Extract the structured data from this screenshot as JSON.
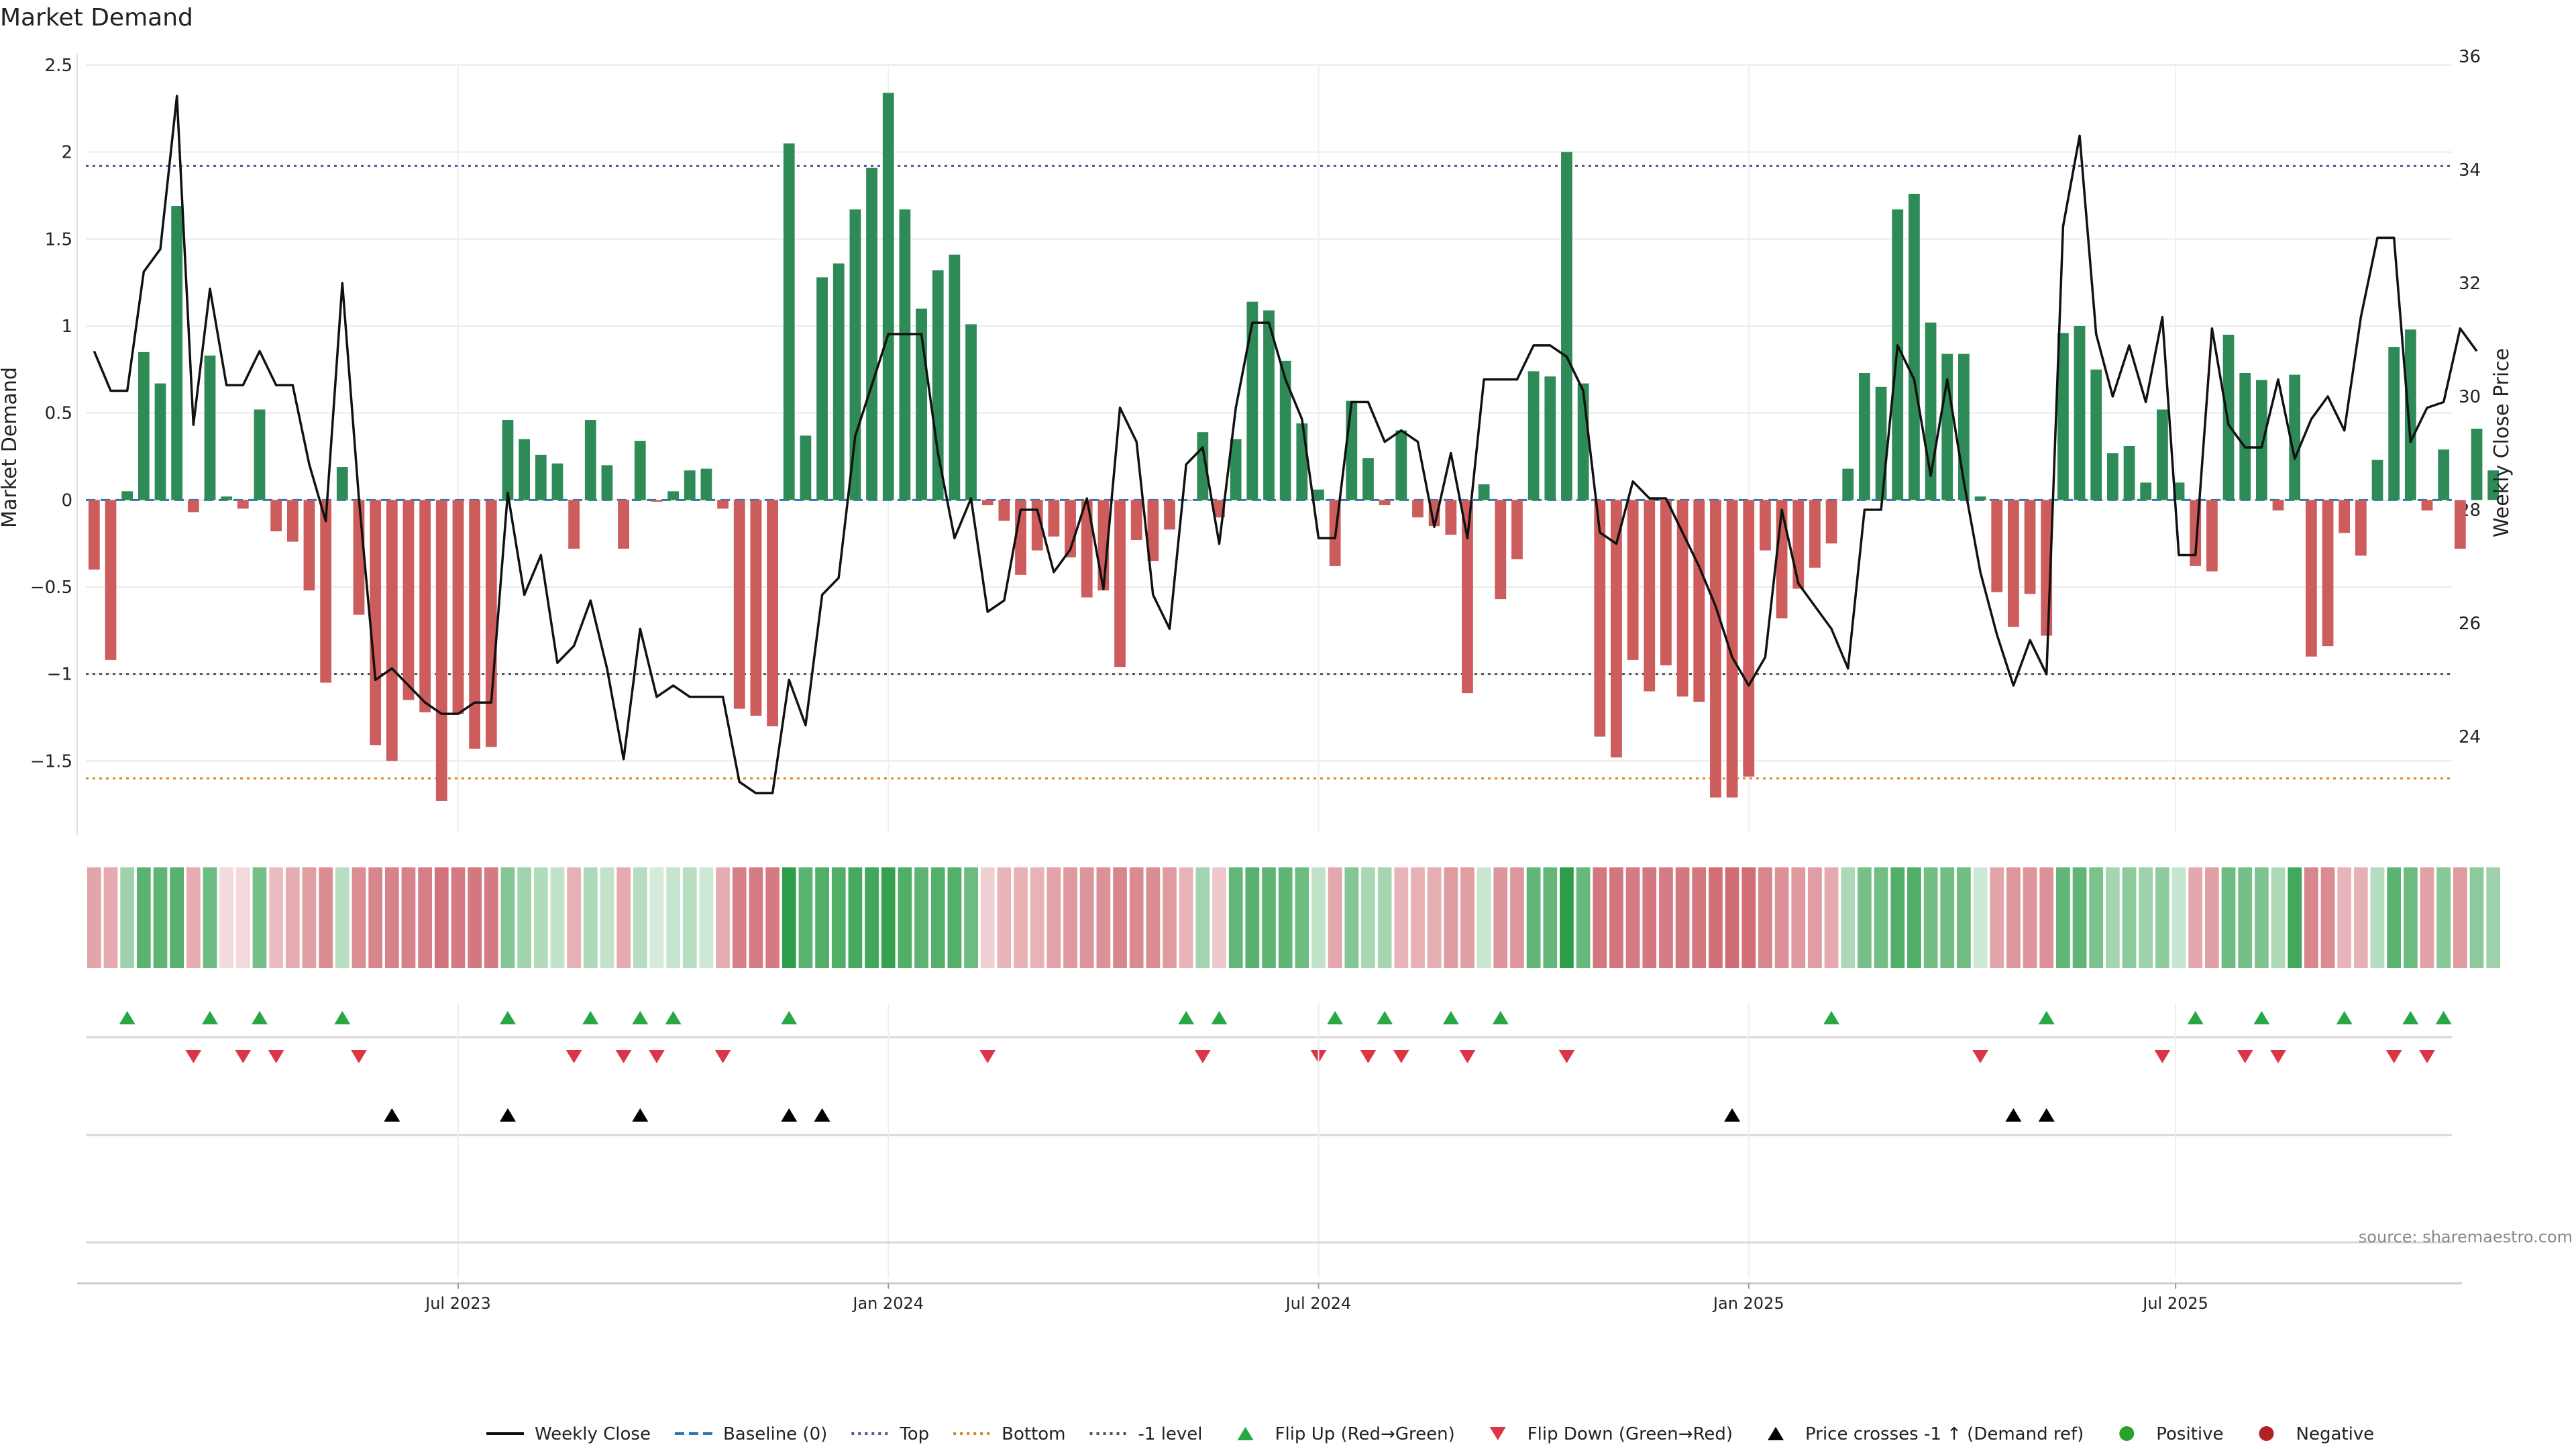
{
  "chart_data": {
    "type": "bar",
    "title": "Market Demand",
    "ylabel": "Market Demand",
    "y2label": "Weekly Close Price",
    "source": "source: sharemaestro.com",
    "ylim": [
      -1.95,
      2.5
    ],
    "y2lim": [
      22.2,
      36
    ],
    "yticks": [
      2.5,
      2,
      1.5,
      1,
      0.5,
      0,
      -0.5,
      -1,
      -1.5
    ],
    "ytick_labels": [
      "2.5",
      "2",
      "1.5",
      "1",
      "0.5",
      "0",
      "−0.5",
      "−1",
      "−1.5"
    ],
    "y2ticks": [
      36,
      34,
      32,
      30,
      28,
      26,
      24
    ],
    "y2tick_labels": [
      "36",
      "34",
      "32",
      "30",
      "28",
      "26",
      "24"
    ],
    "xticks": [
      {
        "label": "Jul 2023",
        "week": 22
      },
      {
        "label": "Jan 2024",
        "week": 48
      },
      {
        "label": "Jul 2024",
        "week": 74
      },
      {
        "label": "Jan 2025",
        "week": 100
      },
      {
        "label": "Jul 2025",
        "week": 125.8
      }
    ],
    "week_count": 143,
    "reference_lines": {
      "top": 1.92,
      "bottom": -1.6,
      "minus_one": -1.0,
      "baseline": 0
    },
    "demand": [
      -0.4,
      -0.92,
      0.05,
      0.85,
      0.67,
      1.69,
      -0.07,
      0.83,
      0.02,
      -0.05,
      0.52,
      -0.18,
      -0.24,
      -0.52,
      -1.05,
      0.19,
      -0.66,
      -1.41,
      -1.5,
      -1.15,
      -1.22,
      -1.73,
      -1.23,
      -1.43,
      -1.42,
      0.46,
      0.35,
      0.26,
      0.21,
      -0.28,
      0.46,
      0.2,
      -0.28,
      0.34,
      -0.01,
      0.05,
      0.17,
      0.18,
      -0.05,
      -1.2,
      -1.24,
      -1.3,
      2.05,
      0.37,
      1.28,
      1.36,
      1.67,
      1.91,
      2.34,
      1.67,
      1.1,
      1.32,
      1.41,
      1.01,
      -0.03,
      -0.12,
      -0.43,
      -0.29,
      -0.21,
      -0.33,
      -0.56,
      -0.52,
      -0.96,
      -0.23,
      -0.35,
      -0.17,
      0.0,
      0.39,
      -0.1,
      0.35,
      1.14,
      1.09,
      0.8,
      0.44,
      0.06,
      -0.38,
      0.57,
      0.24,
      -0.03,
      0.4,
      -0.1,
      -0.15,
      -0.2,
      -1.11,
      0.09,
      -0.57,
      -0.34,
      0.74,
      0.71,
      2.0,
      0.67,
      -1.36,
      -1.48,
      -0.92,
      -1.1,
      -0.95,
      -1.13,
      -1.16,
      -1.71,
      -1.71,
      -1.59,
      -0.29,
      -0.68,
      -0.51,
      -0.39,
      -0.25,
      0.18,
      0.73,
      0.65,
      1.67,
      1.76,
      1.02,
      0.84,
      0.84,
      0.02,
      -0.53,
      -0.73,
      -0.54,
      -0.78,
      0.96,
      1.0,
      0.75,
      0.27,
      0.31,
      0.1,
      0.52,
      0.1,
      -0.38,
      -0.41,
      0.95,
      0.73,
      0.69,
      -0.06,
      0.72,
      -0.9,
      -0.84,
      -0.19,
      -0.32,
      0.23,
      0.88,
      0.98,
      -0.06,
      0.29,
      -0.28,
      0.41,
      0.17
    ],
    "close": [
      30.8,
      30.1,
      30.1,
      32.2,
      32.6,
      35.3,
      29.5,
      31.9,
      30.2,
      30.2,
      30.8,
      30.2,
      30.2,
      28.8,
      27.8,
      32.0,
      28.2,
      25.0,
      25.2,
      24.9,
      24.6,
      24.4,
      24.4,
      24.6,
      24.6,
      28.3,
      26.5,
      27.2,
      25.3,
      25.6,
      26.4,
      25.2,
      23.6,
      25.9,
      24.7,
      24.9,
      24.7,
      24.7,
      24.7,
      23.2,
      23.0,
      23.0,
      25.0,
      24.2,
      26.5,
      26.8,
      29.3,
      30.2,
      31.1,
      31.1,
      31.1,
      29.0,
      27.5,
      28.2,
      26.2,
      26.4,
      28.0,
      28.0,
      26.9,
      27.3,
      28.2,
      26.6,
      29.8,
      29.2,
      26.5,
      25.9,
      28.8,
      29.1,
      27.4,
      29.8,
      31.3,
      31.3,
      30.3,
      29.6,
      27.5,
      27.5,
      29.9,
      29.9,
      29.2,
      29.4,
      29.2,
      27.7,
      29.0,
      27.5,
      30.3,
      30.3,
      30.3,
      30.9,
      30.9,
      30.7,
      30.1,
      27.6,
      27.4,
      28.5,
      28.2,
      28.2,
      27.6,
      27.0,
      26.3,
      25.4,
      24.9,
      25.4,
      28.0,
      26.7,
      26.3,
      25.9,
      25.2,
      28.0,
      28.0,
      30.9,
      30.3,
      28.6,
      30.3,
      28.5,
      26.9,
      25.8,
      24.9,
      25.7,
      25.1,
      33.0,
      34.6,
      31.1,
      30.0,
      30.9,
      29.9,
      31.4,
      27.2,
      27.2,
      31.2,
      29.5,
      29.1,
      29.1,
      30.3,
      28.9,
      29.6,
      30.0,
      29.4,
      31.4,
      32.8,
      32.8,
      29.2,
      29.8,
      29.9,
      31.2,
      30.8
    ],
    "shade_demand": [
      -0.42,
      -0.38,
      0.34,
      0.74,
      0.71,
      0.76,
      -0.36,
      0.63,
      -0.04,
      -0.05,
      0.59,
      -0.26,
      -0.37,
      -0.48,
      -0.58,
      0.2,
      -0.59,
      -0.64,
      -0.66,
      -0.67,
      -0.7,
      -0.77,
      -0.72,
      -0.73,
      -0.72,
      0.5,
      0.33,
      0.23,
      0.15,
      -0.33,
      0.26,
      0.14,
      -0.38,
      0.21,
      0.03,
      0.11,
      0.2,
      0.07,
      -0.37,
      -0.68,
      -0.71,
      -0.72,
      1.04,
      0.75,
      0.8,
      0.81,
      0.86,
      0.89,
      0.96,
      0.8,
      0.73,
      0.77,
      0.78,
      0.64,
      -0.12,
      -0.3,
      -0.33,
      -0.32,
      -0.43,
      -0.5,
      -0.52,
      -0.56,
      -0.64,
      -0.6,
      -0.58,
      -0.49,
      -0.32,
      0.32,
      -0.17,
      0.68,
      0.76,
      0.71,
      0.71,
      0.62,
      0.15,
      -0.39,
      0.5,
      0.28,
      0.31,
      -0.3,
      -0.33,
      -0.35,
      -0.49,
      -0.47,
      0.1,
      -0.53,
      -0.51,
      0.7,
      0.68,
      1.05,
      0.67,
      -0.74,
      -0.76,
      -0.72,
      -0.74,
      -0.71,
      -0.73,
      -0.75,
      -0.8,
      -0.82,
      -0.8,
      -0.63,
      -0.55,
      -0.5,
      -0.46,
      -0.38,
      0.25,
      0.57,
      0.61,
      0.8,
      0.81,
      0.61,
      0.61,
      0.61,
      0.07,
      -0.41,
      -0.51,
      -0.52,
      -0.55,
      0.69,
      0.71,
      0.55,
      0.31,
      0.45,
      0.35,
      0.44,
      0.11,
      -0.39,
      -0.45,
      0.64,
      0.59,
      0.52,
      0.26,
      0.88,
      -0.63,
      -0.6,
      -0.31,
      -0.33,
      0.22,
      0.75,
      0.64,
      -0.44,
      0.47,
      -0.49,
      0.45,
      0.34
    ],
    "events": {
      "flip_up_weeks": [
        2,
        7,
        10,
        15,
        25,
        30,
        33,
        35,
        42,
        66,
        68,
        75,
        78,
        82,
        85,
        105,
        118,
        127,
        131,
        136,
        140,
        142
      ],
      "flip_down_weeks": [
        6,
        9,
        11,
        16,
        29,
        32,
        34,
        38,
        54,
        67,
        74,
        77,
        79,
        83,
        89,
        114,
        125,
        130,
        132,
        139,
        141
      ],
      "price_cross_weeks": [
        18,
        25,
        33,
        42,
        44,
        99,
        116,
        118
      ]
    },
    "legend": [
      {
        "label": "Weekly Close",
        "kind": "line",
        "color": "#111111"
      },
      {
        "label": "Baseline (0)",
        "kind": "dash",
        "color": "#2a78b5"
      },
      {
        "label": "Top",
        "kind": "dot",
        "color": "#4a5a9a"
      },
      {
        "label": "Bottom",
        "kind": "dot",
        "color": "#d08a2a"
      },
      {
        "label": "-1 level",
        "kind": "dot",
        "color": "#555555"
      },
      {
        "label": "Flip Up (Red→Green)",
        "kind": "tri-up",
        "color": "#28a745"
      },
      {
        "label": "Flip Down (Green→Red)",
        "kind": "tri-down",
        "color": "#dc3545"
      },
      {
        "label": "Price crosses -1 ↑ (Demand ref)",
        "kind": "tri-up",
        "color": "#000000"
      },
      {
        "label": "Positive",
        "kind": "circle",
        "color": "#2ca02c"
      },
      {
        "label": "Negative",
        "kind": "circle",
        "color": "#b22222"
      }
    ],
    "colors": {
      "positive_bar": "#2e8b57",
      "negative_bar": "#cd5c5c",
      "price_line": "#111111",
      "shade_positive": "#2e9e4a",
      "shade_negative": "#c8525c"
    },
    "grid": true
  }
}
